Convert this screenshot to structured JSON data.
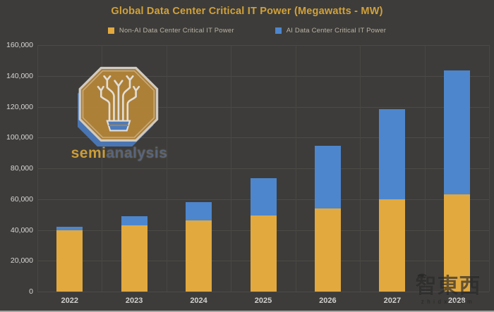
{
  "title": "Global Data Center Critical IT Power (Megawatts - MW)",
  "legend": {
    "items": [
      {
        "label": "Non-AI Data Center Critical IT Power",
        "color": "#e2a93f"
      },
      {
        "label": "AI Data Center Critical IT Power",
        "color": "#4d86cd"
      }
    ]
  },
  "chart_data": {
    "type": "bar",
    "stacked": true,
    "title": "Global Data Center Critical IT Power (Megawatts - MW)",
    "categories": [
      "2022",
      "2023",
      "2024",
      "2025",
      "2026",
      "2027",
      "2028"
    ],
    "series": [
      {
        "name": "Non-AI Data Center Critical IT Power",
        "color": "#e2a93f",
        "values": [
          40000,
          43000,
          46000,
          49500,
          54000,
          60000,
          63000
        ]
      },
      {
        "name": "AI Data Center Critical IT Power",
        "color": "#4d86cd",
        "values": [
          2000,
          6000,
          12000,
          24000,
          40500,
          58500,
          80500
        ]
      }
    ],
    "totals": [
      42000,
      49000,
      58000,
      73500,
      94500,
      118500,
      143500
    ],
    "xlabel": "",
    "ylabel": "",
    "ylim": [
      0,
      160000
    ],
    "ytick_interval": 20000,
    "ytick_labels": [
      "0",
      "20,000",
      "40,000",
      "60,000",
      "80,000",
      "100,000",
      "120,000",
      "140,000",
      "160,000"
    ],
    "grid": true,
    "legend_position": "top"
  },
  "watermarks": {
    "semianalysis": {
      "text_left": "semi",
      "text_right": "analysis"
    },
    "zhidongxi": {
      "cjk": "智東西",
      "url": "zhidx.com"
    }
  },
  "colors": {
    "background": "#3d3c3a",
    "gridline": "#4c4b48",
    "title": "#d2a139",
    "tick_text": "#d8d7d5",
    "legend_text": "#bab3a4"
  }
}
